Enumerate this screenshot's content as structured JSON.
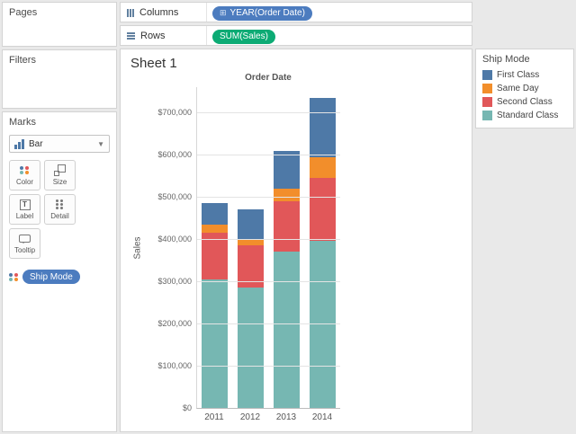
{
  "left_panel": {
    "pages": {
      "title": "Pages"
    },
    "filters": {
      "title": "Filters"
    },
    "marks": {
      "title": "Marks",
      "mark_type": "Bar",
      "buttons": [
        {
          "label": "Color"
        },
        {
          "label": "Size"
        },
        {
          "label": "Label"
        },
        {
          "label": "Detail"
        },
        {
          "label": "Tooltip"
        }
      ],
      "pill": "Ship Mode"
    }
  },
  "shelves": {
    "columns": {
      "label": "Columns",
      "pill": "YEAR(Order Date)",
      "pill_icon": "⊞"
    },
    "rows": {
      "label": "Rows",
      "pill": "SUM(Sales)"
    }
  },
  "sheet": {
    "title": "Sheet 1"
  },
  "legend": {
    "title": "Ship Mode",
    "items": [
      {
        "label": "First Class",
        "color": "#4e79a7"
      },
      {
        "label": "Same Day",
        "color": "#f28e2b"
      },
      {
        "label": "Second Class",
        "color": "#e15759"
      },
      {
        "label": "Standard Class",
        "color": "#76b7b2"
      }
    ]
  },
  "chart_data": {
    "type": "bar",
    "stacked": true,
    "title": "Order Date",
    "ylabel": "Sales",
    "categories": [
      "2011",
      "2012",
      "2013",
      "2014"
    ],
    "series": [
      {
        "name": "Standard Class",
        "color": "#76b7b2",
        "values": [
          305000,
          285000,
          370000,
          395000
        ]
      },
      {
        "name": "Second Class",
        "color": "#e15759",
        "values": [
          110000,
          100000,
          120000,
          150000
        ]
      },
      {
        "name": "Same Day",
        "color": "#f28e2b",
        "values": [
          20000,
          15000,
          30000,
          50000
        ]
      },
      {
        "name": "First Class",
        "color": "#4e79a7",
        "values": [
          50000,
          70000,
          90000,
          140000
        ]
      }
    ],
    "totals": [
      485000,
      470000,
      610000,
      735000
    ],
    "y_ticks": [
      "$0",
      "$100,000",
      "$200,000",
      "$300,000",
      "$400,000",
      "$500,000",
      "$600,000",
      "$700,000"
    ],
    "y_tick_values": [
      0,
      100000,
      200000,
      300000,
      400000,
      500000,
      600000,
      700000
    ],
    "ylim": [
      0,
      760000
    ],
    "grid": true,
    "legend_position": "right"
  }
}
